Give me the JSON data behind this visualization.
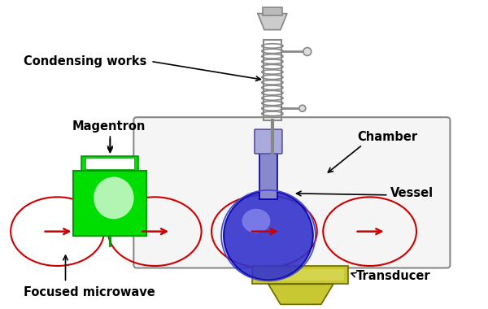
{
  "background_color": "#ffffff",
  "labels": {
    "condensing_works": "Condensing works",
    "magentron": "Magentron",
    "chamber": "Chamber",
    "vessel": "Vessel",
    "transducer": "Transducer",
    "focused_microwave": "Focused microwave"
  },
  "colors": {
    "green_dark": "#009900",
    "green_mid": "#00dd00",
    "green_light": "#88ff88",
    "blue_dark": "#0000aa",
    "blue_mid": "#3333cc",
    "blue_light": "#8888ff",
    "olive_dark": "#6b6b00",
    "olive_mid": "#9a9a00",
    "olive_light": "#c8c832",
    "red_ellipse": "#cc0000",
    "black": "#000000",
    "coil": "#888888",
    "chamber_fill": "#f5f5f5",
    "chamber_edge": "#888888"
  },
  "font_size": 10.5
}
